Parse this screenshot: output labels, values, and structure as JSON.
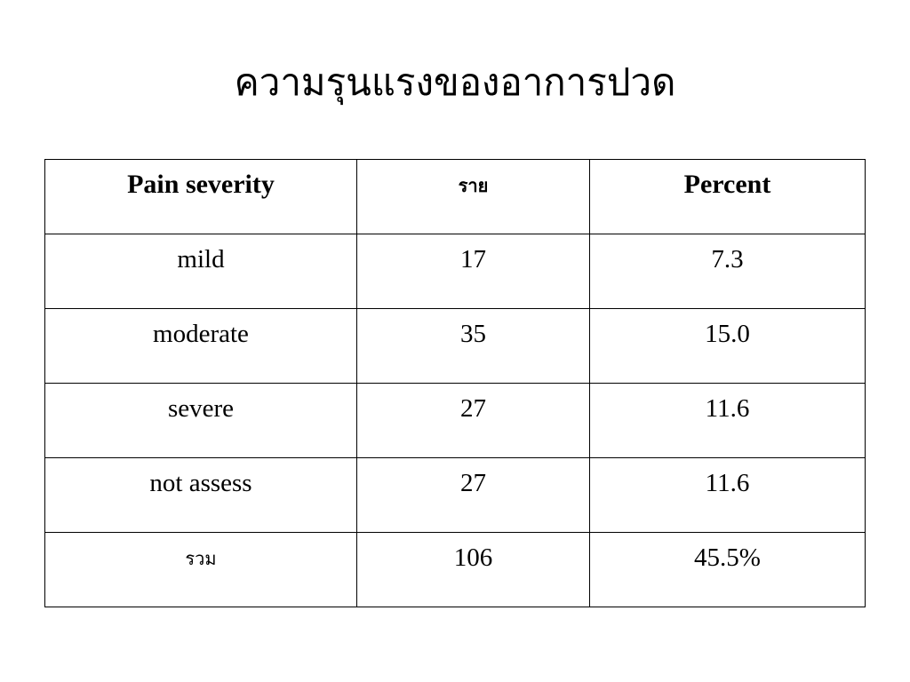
{
  "title": "ความรุนแรงของอาการปวด",
  "table": {
    "header": [
      "Pain severity",
      "ราย",
      "Percent"
    ],
    "rows": [
      [
        "mild",
        "17",
        "7.3"
      ],
      [
        "moderate",
        "35",
        "15.0"
      ],
      [
        "severe",
        "27",
        "11.6"
      ],
      [
        "not assess",
        "27",
        "11.6"
      ],
      [
        "รวม",
        "106",
        "45.5%"
      ]
    ]
  }
}
